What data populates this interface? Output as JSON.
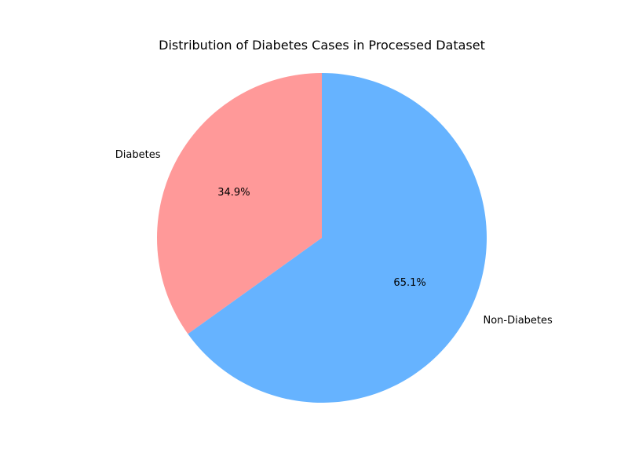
{
  "chart_data": {
    "type": "pie",
    "title": "Distribution of Diabetes Cases in Processed Dataset",
    "categories": [
      "Diabetes",
      "Non-Diabetes"
    ],
    "values": [
      34.9,
      65.1
    ],
    "percent_labels": [
      "34.9%",
      "65.1%"
    ],
    "colors": [
      "#ff9999",
      "#66b3ff"
    ],
    "start_angle_deg": 90,
    "direction": "counterclockwise"
  }
}
